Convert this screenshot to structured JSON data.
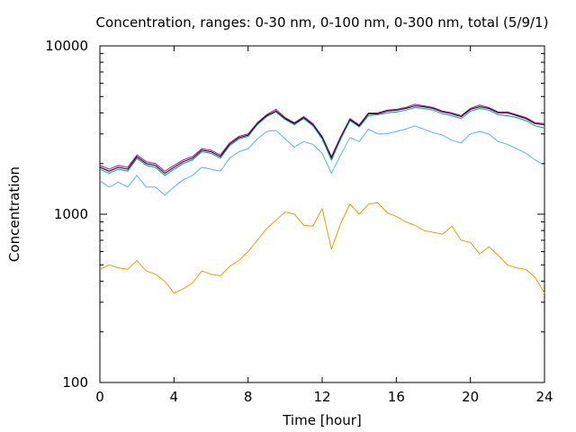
{
  "chart_data": {
    "type": "line",
    "title": "Concentration, ranges: 0-30 nm, 0-100 nm, 0-300 nm, total (5/9/1)",
    "xlabel": "Time [hour]",
    "ylabel": "Concentration",
    "xlim": [
      0,
      24
    ],
    "ylim": [
      100,
      10000
    ],
    "yscale": "log",
    "grid": false,
    "x_ticks": [
      "0",
      "4",
      "8",
      "12",
      "16",
      "20",
      "24"
    ],
    "y_ticks": [
      "100",
      "1000",
      "10000"
    ],
    "x": [
      0,
      0.5,
      1,
      1.5,
      2,
      2.5,
      3,
      3.5,
      4,
      4.5,
      5,
      5.5,
      6,
      6.5,
      7,
      7.5,
      8,
      8.5,
      9,
      9.5,
      10,
      10.5,
      11,
      11.5,
      12,
      12.5,
      13,
      13.5,
      14,
      14.5,
      15,
      15.5,
      16,
      16.5,
      17,
      17.5,
      18,
      18.5,
      19,
      19.5,
      20,
      20.5,
      21,
      21.5,
      22,
      22.5,
      23,
      23.5,
      24
    ],
    "series": [
      {
        "color": "#c000c0",
        "values": [
          1950,
          1850,
          1950,
          1900,
          2250,
          2050,
          2000,
          1800,
          1950,
          2100,
          2200,
          2450,
          2400,
          2250,
          2650,
          2900,
          3000,
          3500,
          3900,
          4200,
          3750,
          3500,
          3800,
          3450,
          2900,
          2200,
          2900,
          3700,
          3400,
          4000,
          4000,
          4150,
          4200,
          4300,
          4500,
          4400,
          4300,
          4100,
          4000,
          3850,
          4250,
          4450,
          4300,
          4050,
          4050,
          3900,
          3750,
          3500,
          3450
        ]
      },
      {
        "color": "#000000",
        "values": [
          1900,
          1800,
          1900,
          1850,
          2200,
          2000,
          1950,
          1750,
          1900,
          2050,
          2150,
          2400,
          2350,
          2200,
          2600,
          2850,
          2950,
          3450,
          3850,
          4100,
          3700,
          3450,
          3750,
          3400,
          2850,
          2150,
          2850,
          3650,
          3350,
          3950,
          3950,
          4100,
          4150,
          4250,
          4400,
          4350,
          4250,
          4050,
          3950,
          3800,
          4200,
          4350,
          4250,
          4000,
          4000,
          3850,
          3700,
          3450,
          3400
        ]
      },
      {
        "color": "#009e73",
        "values": [
          1850,
          1750,
          1850,
          1800,
          2150,
          1950,
          1900,
          1700,
          1850,
          2000,
          2100,
          2350,
          2300,
          2150,
          2550,
          2800,
          2900,
          3400,
          3800,
          4050,
          3650,
          3400,
          3700,
          3350,
          2800,
          2100,
          2800,
          3600,
          3300,
          3850,
          3900,
          4000,
          4050,
          4150,
          4300,
          4250,
          4150,
          3950,
          3850,
          3700,
          4100,
          4250,
          4150,
          3900,
          3850,
          3750,
          3600,
          3350,
          3250
        ]
      },
      {
        "color": "#56b4e9",
        "values": [
          1580,
          1450,
          1550,
          1450,
          1700,
          1450,
          1450,
          1300,
          1450,
          1600,
          1700,
          1900,
          1850,
          1800,
          2150,
          2350,
          2450,
          2800,
          3100,
          3150,
          2800,
          2500,
          2700,
          2600,
          2300,
          1750,
          2250,
          2850,
          2700,
          3200,
          3000,
          3000,
          3100,
          3200,
          3350,
          3200,
          3050,
          2950,
          2750,
          2650,
          3000,
          3100,
          3000,
          2700,
          2600,
          2450,
          2300,
          2100,
          1950
        ]
      },
      {
        "color": "#e69f00",
        "values": [
          470,
          500,
          480,
          470,
          530,
          460,
          440,
          400,
          340,
          360,
          390,
          460,
          440,
          430,
          490,
          530,
          600,
          700,
          820,
          920,
          1030,
          1000,
          860,
          850,
          1080,
          620,
          880,
          1150,
          1000,
          1150,
          1170,
          1020,
          970,
          900,
          860,
          800,
          780,
          760,
          850,
          700,
          680,
          580,
          640,
          570,
          500,
          480,
          470,
          420,
          340
        ]
      }
    ]
  }
}
